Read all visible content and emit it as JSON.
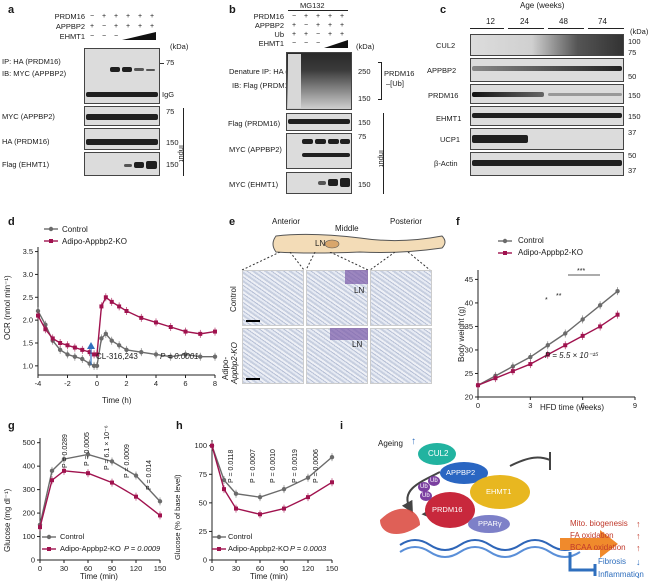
{
  "panels": {
    "a": "a",
    "b": "b",
    "c": "c",
    "d": "d",
    "e": "e",
    "f": "f",
    "g": "g",
    "h": "h",
    "i": "i"
  },
  "a": {
    "rows": [
      "PRDM16",
      "APPBP2",
      "EHMT1"
    ],
    "signs": [
      [
        "−",
        "+",
        "+",
        "+",
        "+",
        "+"
      ],
      [
        "+",
        "−",
        "+",
        "+",
        "+",
        "+"
      ],
      [
        "−",
        "−",
        "−",
        "",
        "",
        ""
      ]
    ],
    "kda": "(kDa)",
    "ip_label": "IP: HA (PRDM16)",
    "ib_label": "IB: MYC (APPBP2)",
    "m75": "75",
    "igg": "IgG",
    "input_rows": [
      "MYC (APPBP2)",
      "HA (PRDM16)",
      "Flag (EHMT1)"
    ],
    "input_markers": [
      "75",
      "150",
      "150"
    ],
    "input": "Input"
  },
  "b": {
    "mg132": "MG132",
    "rows": [
      "PRDM16",
      "APPBP2",
      "Ub",
      "EHMT1"
    ],
    "signs": [
      [
        "−",
        "+",
        "+",
        "+",
        "+"
      ],
      [
        "+",
        "−",
        "+",
        "+",
        "+"
      ],
      [
        "+",
        "+",
        "−",
        "+",
        "+"
      ],
      [
        "−",
        "−",
        "−",
        "",
        ""
      ]
    ],
    "kda": "(kDa)",
    "denature": "Denature IP: HA (Ub)",
    "ib": "IB: Flag (PRDM16)",
    "m250": "250",
    "m150": "150",
    "ub_label": "PRDM16",
    "ub_label2": "–[Ub]",
    "input_rows": [
      "Flag (PRDM16)",
      "MYC (APPBP2)",
      "MYC (EHMT1)"
    ],
    "input_markers": [
      "150",
      "75",
      "150"
    ],
    "input": "Input"
  },
  "c": {
    "age_title": "Age (weeks)",
    "ages": [
      "12",
      "24",
      "48",
      "74"
    ],
    "kda": "(kDa)",
    "rows": [
      "CUL2",
      "APPBP2",
      "PRDM16",
      "EHMT1",
      "UCP1",
      "β-Actin"
    ],
    "markers": [
      "100",
      "75",
      "50",
      "150",
      "150",
      "37",
      "50",
      "37"
    ]
  },
  "d": {
    "legend": [
      "Control",
      "Adipo-Appbp2-KO"
    ],
    "ylabel": "OCR (nmol min⁻¹)",
    "xlabel": "Time (h)",
    "annotation": "CL-316,243",
    "p": "P = 0.0001",
    "chart_data": {
      "type": "line",
      "x_ticks": [
        -4,
        -2,
        0,
        2,
        4,
        6,
        8
      ],
      "y_ticks": [
        1.0,
        1.5,
        2.0,
        2.5,
        3.0,
        3.5
      ],
      "xlim": [
        -4,
        8
      ],
      "ylim": [
        0.8,
        3.6
      ],
      "xlabel": "Time (h)",
      "ylabel": "OCR (nmol min⁻¹)",
      "series": [
        {
          "name": "Control",
          "color": "#6b6b6b",
          "x": [
            -4,
            -3.5,
            -3,
            -2.5,
            -2,
            -1.5,
            -1,
            -0.5,
            -0.2,
            0,
            0.3,
            0.6,
            1,
            1.5,
            2,
            3,
            4,
            5,
            6,
            7,
            8
          ],
          "y": [
            2.2,
            1.9,
            1.55,
            1.35,
            1.25,
            1.2,
            1.15,
            1.05,
            1.0,
            1.0,
            1.6,
            1.7,
            1.55,
            1.45,
            1.35,
            1.3,
            1.25,
            1.2,
            1.25,
            1.2,
            1.2
          ]
        },
        {
          "name": "Adipo-Appbp2-KO",
          "color": "#a0124e",
          "x": [
            -4,
            -3.5,
            -3,
            -2.5,
            -2,
            -1.5,
            -1,
            -0.5,
            -0.2,
            0,
            0.3,
            0.6,
            1,
            1.5,
            2,
            3,
            4,
            5,
            6,
            7,
            8
          ],
          "y": [
            2.1,
            1.8,
            1.6,
            1.5,
            1.45,
            1.4,
            1.35,
            1.3,
            1.25,
            1.25,
            2.3,
            2.5,
            2.4,
            2.3,
            2.2,
            2.05,
            1.95,
            1.85,
            1.75,
            1.7,
            1.75
          ]
        }
      ]
    }
  },
  "e": {
    "anterior": "Anterior",
    "middle": "Middle",
    "posterior": "Posterior",
    "ln": "LN",
    "rows": [
      "Control",
      "Adipo-"
    ],
    "row2b": "Appbp2-KO"
  },
  "f": {
    "legend": [
      "Control",
      "Adipo-Appbp2-KO"
    ],
    "ylabel": "Body weight (g)",
    "xlabel": "HFD time (weeks)",
    "p": "P = 5.5 × 10⁻¹⁵",
    "stars": [
      "*",
      "**",
      "***"
    ],
    "chart_data": {
      "type": "line",
      "x_ticks": [
        0,
        3,
        6,
        9
      ],
      "y_ticks": [
        20,
        25,
        30,
        35,
        40,
        45
      ],
      "xlim": [
        0,
        9
      ],
      "ylim": [
        20,
        47
      ],
      "xlabel": "HFD time (weeks)",
      "ylabel": "Body weight (g)",
      "series": [
        {
          "name": "Control",
          "color": "#6b6b6b",
          "x": [
            0,
            1,
            2,
            3,
            4,
            5,
            6,
            7,
            8
          ],
          "y": [
            22.5,
            24.5,
            26.5,
            28.5,
            31,
            33.5,
            36.5,
            39.5,
            42.5
          ]
        },
        {
          "name": "Adipo-Appbp2-KO",
          "color": "#a0124e",
          "x": [
            0,
            1,
            2,
            3,
            4,
            5,
            6,
            7,
            8
          ],
          "y": [
            22.5,
            24,
            25.5,
            27,
            29,
            31,
            33,
            35,
            37.5
          ]
        }
      ]
    }
  },
  "g": {
    "ylabel": "Glucose (mg dl⁻¹)",
    "xlabel": "Time (min)",
    "legend": [
      "Control",
      "Adipo-Appbp2-KO"
    ],
    "p_values": [
      "P = 0.0289",
      "P = 0.0005",
      "P = 6.1 × 10⁻⁶",
      "P = 0.0009",
      "P = 0.014"
    ],
    "p_total": "P = 0.0009",
    "chart_data": {
      "type": "line",
      "x_ticks": [
        0,
        30,
        60,
        90,
        120,
        150
      ],
      "y_ticks": [
        0,
        100,
        200,
        300,
        400,
        500
      ],
      "xlim": [
        0,
        150
      ],
      "ylim": [
        0,
        520
      ],
      "xlabel": "Time (min)",
      "ylabel": "Glucose (mg dl⁻¹)",
      "series": [
        {
          "name": "Control",
          "color": "#6b6b6b",
          "x": [
            0,
            15,
            30,
            60,
            90,
            120,
            150
          ],
          "y": [
            150,
            380,
            430,
            450,
            420,
            360,
            250
          ]
        },
        {
          "name": "Adipo-Appbp2-KO",
          "color": "#a0124e",
          "x": [
            0,
            15,
            30,
            60,
            90,
            120,
            150
          ],
          "y": [
            140,
            340,
            380,
            370,
            330,
            270,
            190
          ]
        }
      ]
    }
  },
  "h": {
    "ylabel": "Glucose (% of base level)",
    "xlabel": "Time (min)",
    "legend": [
      "Control",
      "Adipo-Appbp2-KO"
    ],
    "p_values": [
      "P = 0.0118",
      "P = 0.0007",
      "P = 0.0010",
      "P = 0.0019",
      "P = 0.0006"
    ],
    "p_total": "P = 0.0003",
    "chart_data": {
      "type": "line",
      "x_ticks": [
        0,
        30,
        60,
        90,
        120,
        150
      ],
      "y_ticks": [
        0,
        25,
        50,
        75,
        100
      ],
      "xlim": [
        0,
        150
      ],
      "ylim": [
        0,
        105
      ],
      "xlabel": "Time (min)",
      "ylabel": "Glucose (% of base level)",
      "series": [
        {
          "name": "Control",
          "color": "#6b6b6b",
          "x": [
            0,
            15,
            30,
            60,
            90,
            120,
            150
          ],
          "y": [
            100,
            70,
            58,
            55,
            62,
            72,
            90
          ]
        },
        {
          "name": "Adipo-Appbp2-KO",
          "color": "#a0124e",
          "x": [
            0,
            15,
            30,
            60,
            90,
            120,
            150
          ],
          "y": [
            100,
            62,
            45,
            40,
            45,
            55,
            68
          ]
        }
      ]
    }
  },
  "i": {
    "ageing": "Ageing",
    "cul2": "CUL2",
    "appbp2": "APPBP2",
    "prdm16": "PRDM16",
    "ehmt1": "EHMT1",
    "ppar": "PPARγ",
    "ub": "Ub",
    "outputs": [
      "Mito. biogenesis",
      "FA oxidation",
      "BCAA oxidation",
      "Fibrosis",
      "Inflammation"
    ]
  }
}
